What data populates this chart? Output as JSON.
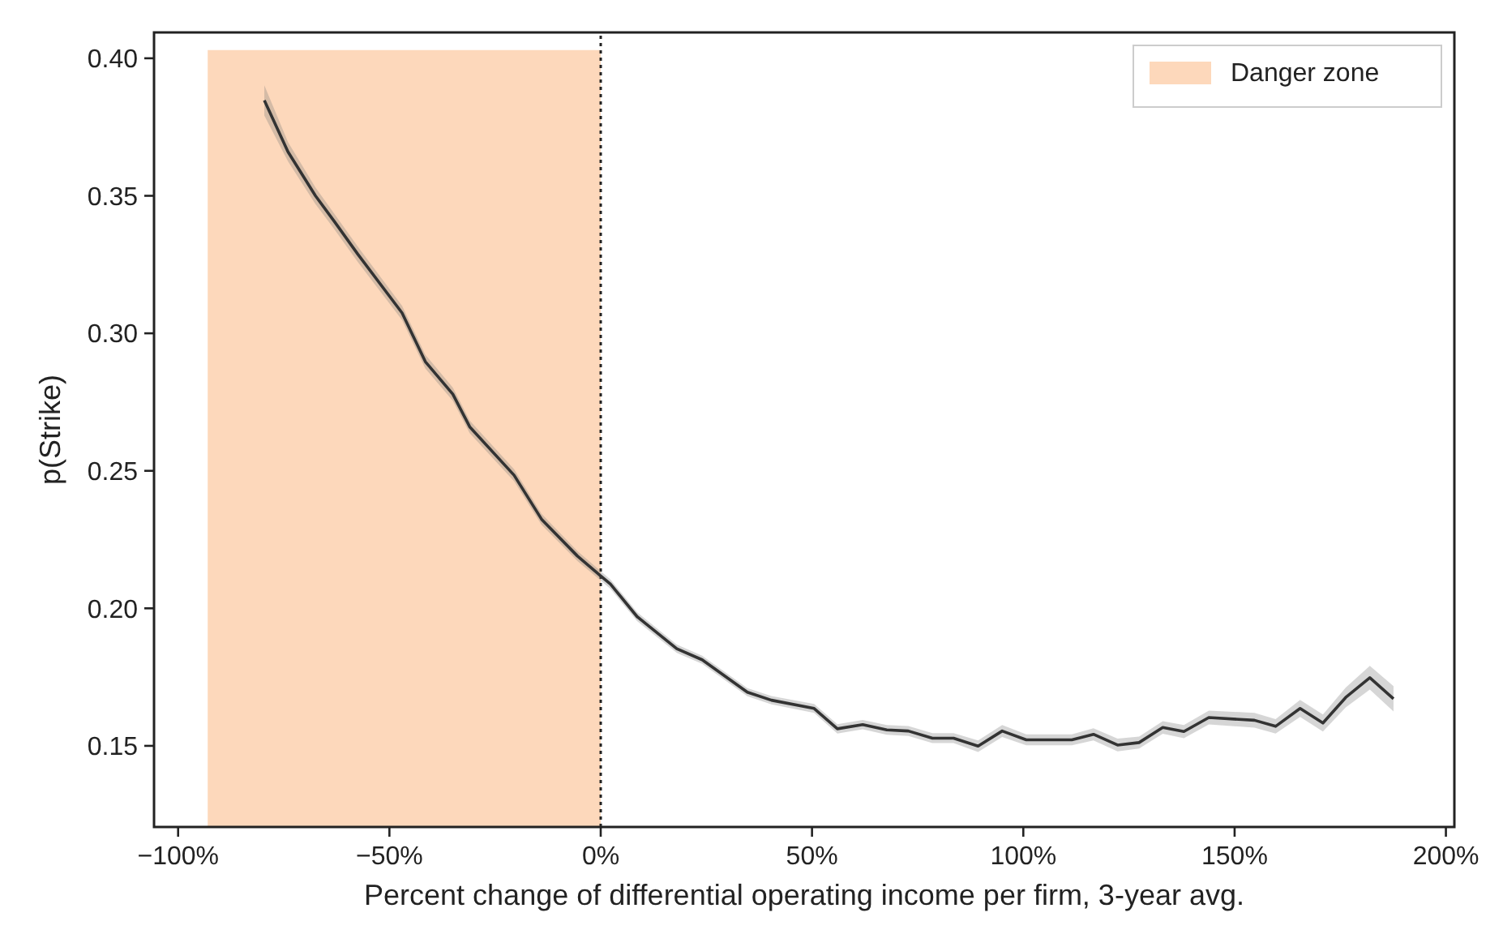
{
  "chart_data": {
    "type": "line",
    "xlabel": "Percent change of differential operating income per firm, 3-year avg.",
    "ylabel": "p(Strike)",
    "xlim": [
      -105.7,
      202
    ],
    "ylim": [
      0.1205,
      0.4094
    ],
    "xticks": [
      {
        "value": -100,
        "label": "−100%"
      },
      {
        "value": -50,
        "label": "−50%"
      },
      {
        "value": 0,
        "label": "0%"
      },
      {
        "value": 50,
        "label": "50%"
      },
      {
        "value": 100,
        "label": "100%"
      },
      {
        "value": 150,
        "label": "150%"
      },
      {
        "value": 200,
        "label": "200%"
      }
    ],
    "yticks": [
      {
        "value": 0.15,
        "label": "0.15"
      },
      {
        "value": 0.2,
        "label": "0.20"
      },
      {
        "value": 0.25,
        "label": "0.25"
      },
      {
        "value": 0.3,
        "label": "0.30"
      },
      {
        "value": 0.35,
        "label": "0.35"
      },
      {
        "value": 0.4,
        "label": "0.40"
      }
    ],
    "grid": false,
    "legend": "top right",
    "marker": "none",
    "line_style": "solid",
    "ref_lines": [
      {
        "axis": "x",
        "value": 0,
        "color": "#222222",
        "line_style": "dotted"
      }
    ],
    "series": [
      {
        "type": "area",
        "name": "Danger zone",
        "color": "#fdd8bb",
        "x": [
          -93,
          0
        ],
        "values": [
          0.403,
          0.403
        ]
      },
      {
        "color": "#333333",
        "x": [
          -79.6,
          -74,
          -67.5,
          -63,
          -57.5,
          -47,
          -41.5,
          -35,
          -31,
          -20.5,
          -14,
          -5.5,
          0,
          2.3,
          8.6,
          18,
          24,
          34.7,
          40.4,
          50.5,
          56,
          62,
          67.7,
          72.8,
          78.5,
          83.5,
          89.3,
          95,
          100.7,
          111.5,
          116.6,
          122.3,
          127.4,
          133,
          138,
          143.9,
          154.7,
          159.7,
          165.5,
          170.9,
          176.3,
          182,
          187.6
        ],
        "values": [
          0.3847,
          0.366,
          0.35,
          0.3406,
          0.3288,
          0.3074,
          0.2897,
          0.2779,
          0.266,
          0.2484,
          0.2324,
          0.219,
          0.2118,
          0.2088,
          0.197,
          0.1853,
          0.1813,
          0.1695,
          0.1666,
          0.1636,
          0.1562,
          0.1577,
          0.1558,
          0.1554,
          0.1528,
          0.1528,
          0.1499,
          0.1554,
          0.1522,
          0.1522,
          0.1542,
          0.1503,
          0.1512,
          0.1567,
          0.1552,
          0.1603,
          0.1593,
          0.1571,
          0.1636,
          0.1583,
          0.1676,
          0.1748,
          0.1671
        ],
        "lower": [
          0.3792,
          0.3625,
          0.347,
          0.3378,
          0.326,
          0.3048,
          0.2872,
          0.2755,
          0.2637,
          0.2462,
          0.2304,
          0.2172,
          0.2101,
          0.2071,
          0.1954,
          0.1838,
          0.1798,
          0.168,
          0.1651,
          0.162,
          0.1545,
          0.156,
          0.154,
          0.1536,
          0.151,
          0.151,
          0.1478,
          0.1532,
          0.1502,
          0.1502,
          0.152,
          0.148,
          0.149,
          0.1544,
          0.1528,
          0.1578,
          0.1566,
          0.1545,
          0.1605,
          0.1552,
          0.164,
          0.1705,
          0.1625
        ],
        "upper": [
          0.3902,
          0.3695,
          0.353,
          0.3434,
          0.3316,
          0.31,
          0.2922,
          0.2803,
          0.2683,
          0.2506,
          0.2344,
          0.2208,
          0.2135,
          0.2105,
          0.1986,
          0.1868,
          0.1828,
          0.171,
          0.1681,
          0.1652,
          0.1579,
          0.1594,
          0.1576,
          0.1572,
          0.1546,
          0.1546,
          0.152,
          0.1576,
          0.1542,
          0.1542,
          0.1564,
          0.1526,
          0.1534,
          0.159,
          0.1576,
          0.1628,
          0.162,
          0.1597,
          0.1667,
          0.1614,
          0.1712,
          0.1791,
          0.1717
        ]
      }
    ]
  }
}
